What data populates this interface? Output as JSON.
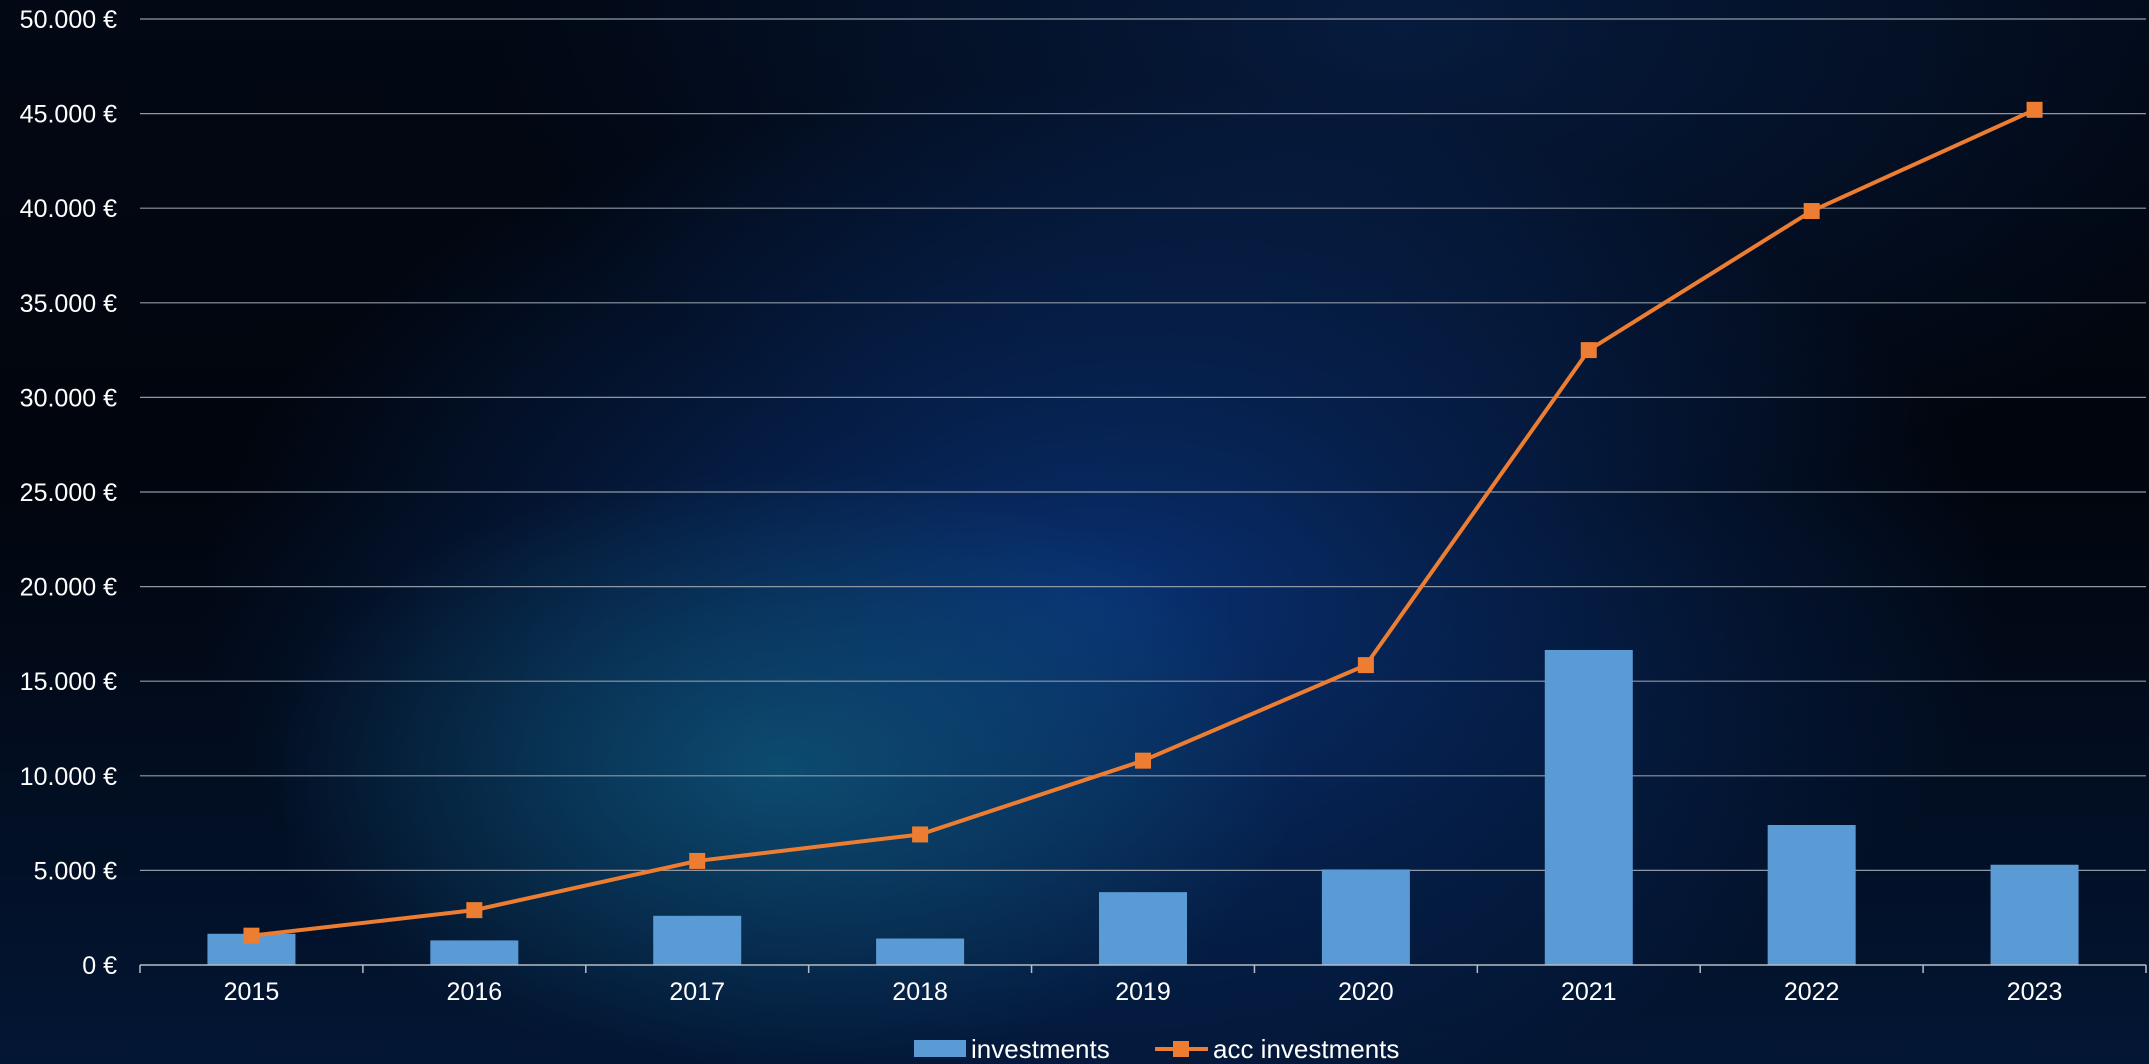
{
  "chart_data": {
    "type": "bar",
    "categories": [
      "2015",
      "2016",
      "2017",
      "2018",
      "2019",
      "2020",
      "2021",
      "2022",
      "2023"
    ],
    "series": [
      {
        "name": "investments",
        "type": "bar",
        "color": "#5b9bd5",
        "values": [
          1650,
          1300,
          2600,
          1400,
          3850,
          5050,
          16650,
          7400,
          5300
        ]
      },
      {
        "name": "acc investments",
        "type": "line",
        "marker": "square",
        "color": "#ed7d31",
        "values": [
          1550,
          2900,
          5500,
          6900,
          10800,
          15850,
          32500,
          39850,
          45200
        ]
      }
    ],
    "ylim": [
      0,
      50000
    ],
    "yticks": [
      0,
      5000,
      10000,
      15000,
      20000,
      25000,
      30000,
      35000,
      40000,
      45000,
      50000
    ],
    "ytick_labels": [
      "0 €",
      "5.000 €",
      "10.000 €",
      "15.000 €",
      "20.000 €",
      "25.000 €",
      "30.000 €",
      "35.000 €",
      "40.000 €",
      "45.000 €",
      "50.000 €"
    ],
    "grid": true,
    "legend_position": "bottom-center",
    "title": "",
    "xlabel": "",
    "ylabel": ""
  }
}
